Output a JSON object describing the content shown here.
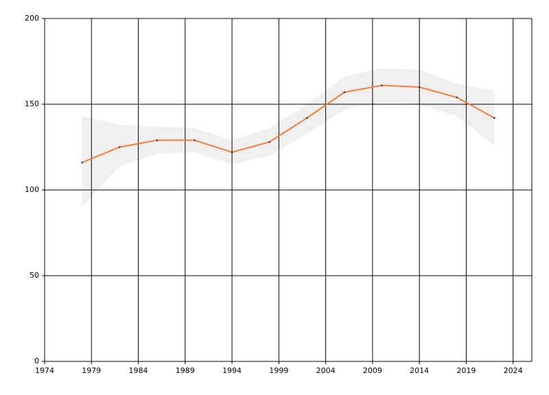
{
  "chart_data": {
    "type": "line",
    "x": [
      1978,
      1982,
      1986,
      1990,
      1994,
      1998,
      2002,
      2006,
      2010,
      2014,
      2018,
      2022
    ],
    "series": [
      {
        "color": "#f47e3c",
        "values": [
          116,
          125,
          129,
          129,
          122,
          128,
          142,
          157,
          161,
          160,
          154,
          142
        ],
        "upper": [
          143,
          138,
          137,
          136,
          129,
          136,
          150,
          166,
          171,
          170,
          162,
          158
        ],
        "lower": [
          90,
          114,
          121,
          122,
          115,
          120,
          133,
          147,
          151,
          150,
          143,
          126
        ],
        "band_color": "#efefef"
      }
    ],
    "xlim": [
      1974,
      2026
    ],
    "xticks": [
      1974,
      1979,
      1984,
      1989,
      1994,
      1999,
      2004,
      2009,
      2014,
      2019,
      2024
    ],
    "ylim": [
      0,
      200
    ],
    "yticks": [
      0,
      50,
      100,
      150,
      200
    ],
    "grid": true
  }
}
